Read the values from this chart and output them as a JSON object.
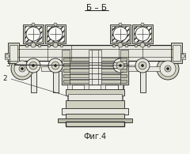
{
  "title": "Б – Б",
  "fig_label": "Фиг.4",
  "label_2": "2",
  "label_3": "3",
  "bg_color": "#f5f5f0",
  "line_color": "#404040",
  "dark_color": "#222222",
  "fill_light": "#e8e8e0",
  "fill_mid": "#d0d0c0",
  "fill_dark": "#b8b8a8",
  "fill_hatch": "#c0c0b0",
  "white": "#f8f8f5"
}
